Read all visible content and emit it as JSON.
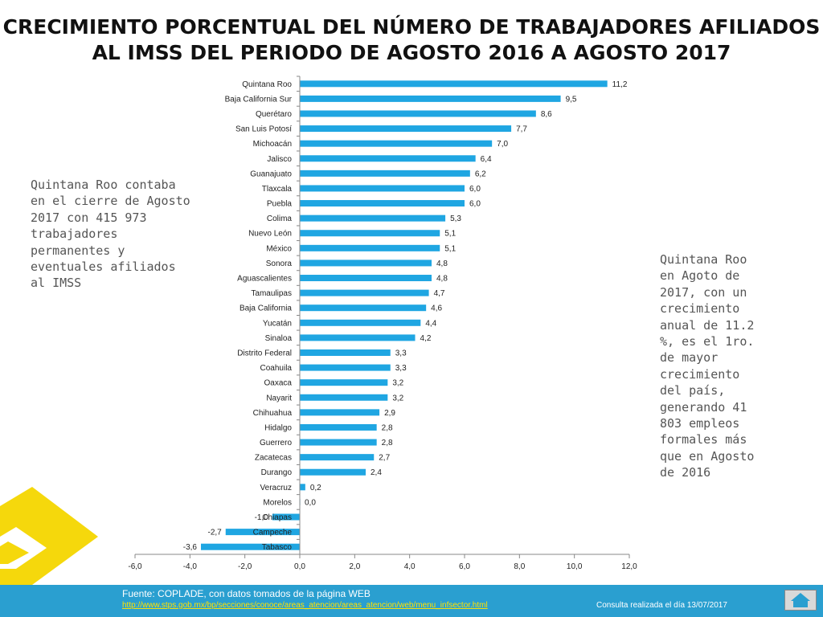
{
  "title_line1": "CRECIMIENTO PORCENTUAL DEL NÚMERO DE TRABAJADORES AFILIADOS",
  "title_line2": "AL IMSS DEL PERIODO DE AGOSTO 2016 A AGOSTO 2017",
  "note_left": "Quintana Roo contaba\nen el cierre de Agosto\n2017 con 415 973\ntrabajadores\npermanentes y\neventuales afiliados\nal IMSS",
  "note_right": "Quintana Roo\nen Agoto de\n2017, con un\ncrecimiento\nanual  de 11.2\n%, es el 1ro.\nde  mayor\ncrecimiento\ndel país,\ngenerando 41\n803 empleos\nformales más\nque en Agosto\nde 2016",
  "footer": {
    "source": "Fuente:  COPLADE, con datos tomados de la página WEB",
    "url": "http://www.stps.gob.mx/bp/secciones/conoce/areas_atencion/areas_atencion/web/menu_infsector.html",
    "consult_date": "Consulta realizada el día  13/07/2017"
  },
  "colors": {
    "bar": "#1fa6e2",
    "footer": "#2a9fd0",
    "logo": "#f5d80c"
  },
  "chart_data": {
    "type": "bar",
    "orientation": "horizontal",
    "categories": [
      "Quintana Roo",
      "Baja California Sur",
      "Querétaro",
      "San Luis Potosí",
      "Michoacán",
      "Jalisco",
      "Guanajuato",
      "Tlaxcala",
      "Puebla",
      "Colima",
      "Nuevo León",
      "México",
      "Sonora",
      "Aguascalientes",
      "Tamaulipas",
      "Baja California",
      "Yucatán",
      "Sinaloa",
      "Distrito Federal",
      "Coahuila",
      "Oaxaca",
      "Nayarit",
      "Chihuahua",
      "Hidalgo",
      "Guerrero",
      "Zacatecas",
      "Durango",
      "Veracruz",
      "Morelos",
      "Chiapas",
      "Campeche",
      "Tabasco"
    ],
    "values": [
      11.2,
      9.5,
      8.6,
      7.7,
      7.0,
      6.4,
      6.2,
      6.0,
      6.0,
      5.3,
      5.1,
      5.1,
      4.8,
      4.8,
      4.7,
      4.6,
      4.4,
      4.2,
      3.3,
      3.3,
      3.2,
      3.2,
      2.9,
      2.8,
      2.8,
      2.7,
      2.4,
      0.2,
      0.0,
      -1.0,
      -2.7,
      -3.6
    ],
    "value_labels": [
      "11,2",
      "9,5",
      "8,6",
      "7,7",
      "7,0",
      "6,4",
      "6,2",
      "6,0",
      "6,0",
      "5,3",
      "5,1",
      "5,1",
      "4,8",
      "4,8",
      "4,7",
      "4,6",
      "4,4",
      "4,2",
      "3,3",
      "3,3",
      "3,2",
      "3,2",
      "2,9",
      "2,8",
      "2,8",
      "2,7",
      "2,4",
      "0,2",
      "0,0",
      "-1,0",
      "-2,7",
      "-3,6"
    ],
    "xlim": [
      -6.0,
      12.0
    ],
    "xticks": [
      -6.0,
      -4.0,
      -2.0,
      0.0,
      2.0,
      4.0,
      6.0,
      8.0,
      10.0,
      12.0
    ],
    "xtick_labels": [
      "-6,0",
      "-4,0",
      "-2,0",
      "0,0",
      "2,0",
      "4,0",
      "6,0",
      "8,0",
      "10,0",
      "12,0"
    ],
    "grid": false,
    "legend": "none",
    "title": "",
    "xlabel": "",
    "ylabel": ""
  }
}
